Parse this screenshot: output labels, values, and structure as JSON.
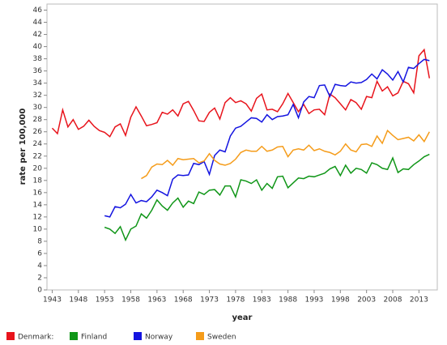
{
  "chart_data": {
    "type": "line",
    "x_label": "year",
    "y_label": "rate per 100,000",
    "x": [
      1943,
      1944,
      1945,
      1946,
      1947,
      1948,
      1949,
      1950,
      1951,
      1952,
      1953,
      1954,
      1955,
      1956,
      1957,
      1958,
      1959,
      1960,
      1961,
      1962,
      1963,
      1964,
      1965,
      1966,
      1967,
      1968,
      1969,
      1970,
      1971,
      1972,
      1973,
      1974,
      1975,
      1976,
      1977,
      1978,
      1979,
      1980,
      1981,
      1982,
      1983,
      1984,
      1985,
      1986,
      1987,
      1988,
      1989,
      1990,
      1991,
      1992,
      1993,
      1994,
      1995,
      1996,
      1997,
      1998,
      1999,
      2000,
      2001,
      2002,
      2003,
      2004,
      2005,
      2006,
      2007,
      2008,
      2009,
      2010,
      2011,
      2012,
      2013,
      2014,
      2015
    ],
    "series": [
      {
        "name": "Denmark:",
        "color": "#e8141c",
        "values": [
          26.6,
          25.7,
          29.6,
          26.8,
          28.0,
          26.4,
          26.9,
          27.9,
          26.9,
          26.2,
          25.9,
          25.2,
          26.8,
          27.3,
          25.4,
          28.4,
          30.1,
          28.6,
          27.0,
          27.2,
          27.5,
          29.2,
          28.9,
          29.6,
          28.6,
          30.6,
          31.0,
          29.5,
          27.8,
          27.7,
          29.2,
          29.9,
          28.1,
          30.8,
          31.6,
          30.8,
          31.1,
          30.6,
          29.4,
          31.5,
          32.2,
          29.6,
          29.7,
          29.3,
          30.6,
          32.3,
          30.8,
          29.3,
          30.5,
          29.0,
          29.6,
          29.7,
          28.8,
          32.2,
          31.6,
          30.6,
          29.6,
          31.3,
          30.8,
          29.7,
          31.8,
          31.6,
          34.3,
          32.7,
          33.4,
          31.9,
          32.4,
          34.3,
          33.9,
          32.4,
          38.5,
          39.5,
          34.8
        ]
      },
      {
        "name": "Finland",
        "color": "#109618",
        "values": [
          null,
          null,
          null,
          null,
          null,
          null,
          null,
          null,
          null,
          null,
          10.3,
          10.0,
          9.3,
          10.4,
          8.2,
          10.0,
          10.5,
          12.5,
          11.8,
          13.1,
          14.8,
          13.8,
          13.1,
          14.3,
          15.1,
          13.6,
          14.6,
          14.2,
          16.1,
          15.7,
          16.4,
          16.5,
          15.6,
          17.1,
          17.1,
          15.3,
          18.1,
          17.9,
          17.5,
          18.1,
          16.4,
          17.5,
          16.7,
          18.6,
          18.7,
          16.8,
          17.6,
          18.4,
          18.3,
          18.7,
          18.6,
          18.9,
          19.2,
          19.9,
          20.3,
          18.8,
          20.5,
          19.2,
          20.0,
          19.8,
          19.2,
          20.9,
          20.6,
          20.0,
          19.8,
          21.7,
          19.3,
          19.9,
          19.8,
          20.6,
          21.2,
          21.9,
          22.3
        ]
      },
      {
        "name": "Norway",
        "color": "#1414e0",
        "values": [
          null,
          null,
          null,
          null,
          null,
          null,
          null,
          null,
          null,
          null,
          12.2,
          12.0,
          13.7,
          13.5,
          14.1,
          15.7,
          14.3,
          14.7,
          14.5,
          15.3,
          16.4,
          16.0,
          15.5,
          18.2,
          18.9,
          18.8,
          18.9,
          20.8,
          20.6,
          21.1,
          19.0,
          22.1,
          23.0,
          22.7,
          25.3,
          26.6,
          26.9,
          27.6,
          28.3,
          28.2,
          27.6,
          28.8,
          28.0,
          28.5,
          28.6,
          28.8,
          30.5,
          28.3,
          30.9,
          31.8,
          31.6,
          33.6,
          33.7,
          31.8,
          33.8,
          33.6,
          33.5,
          34.2,
          34.0,
          34.1,
          34.6,
          35.5,
          34.7,
          36.2,
          35.5,
          34.5,
          35.9,
          34.2,
          36.6,
          36.4,
          37.2,
          37.9,
          37.7
        ]
      },
      {
        "name": "Sweden",
        "color": "#f59c1a",
        "values": [
          null,
          null,
          null,
          null,
          null,
          null,
          null,
          null,
          null,
          null,
          null,
          null,
          null,
          null,
          null,
          null,
          null,
          18.3,
          18.8,
          20.2,
          20.7,
          20.6,
          21.3,
          20.5,
          21.6,
          21.4,
          21.5,
          21.6,
          20.9,
          21.2,
          22.4,
          21.3,
          20.7,
          20.5,
          20.8,
          21.5,
          22.6,
          23.0,
          22.8,
          22.8,
          23.6,
          22.8,
          23.0,
          23.5,
          23.6,
          21.9,
          23.0,
          23.2,
          23.0,
          23.8,
          22.9,
          23.2,
          22.8,
          22.6,
          22.2,
          22.8,
          24.0,
          23.0,
          22.7,
          23.9,
          24.0,
          23.6,
          25.3,
          24.1,
          26.2,
          25.4,
          24.7,
          24.9,
          25.1,
          24.5,
          25.5,
          24.4,
          26.0
        ]
      }
    ],
    "xlim": [
      1942,
      2016.5
    ],
    "xticks": [
      1943,
      1948,
      1953,
      1958,
      1963,
      1968,
      1973,
      1978,
      1983,
      1988,
      1993,
      1998,
      2003,
      2008,
      2013
    ],
    "ylim": [
      0,
      47
    ],
    "yticks": [
      0,
      2,
      4,
      6,
      8,
      10,
      12,
      14,
      16,
      18,
      20,
      22,
      24,
      26,
      28,
      30,
      32,
      34,
      36,
      38,
      40,
      42,
      44,
      46
    ],
    "grid": false,
    "legend": "bottom"
  }
}
